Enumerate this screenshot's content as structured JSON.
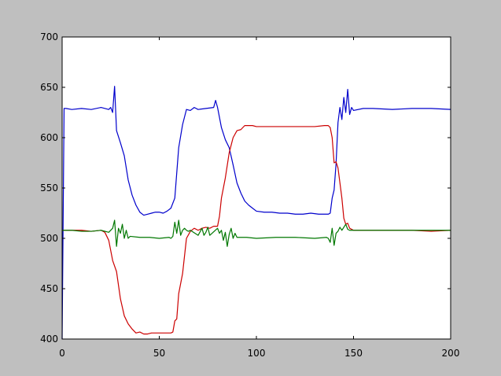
{
  "chart_data": {
    "type": "line",
    "title": "",
    "xlabel": "",
    "ylabel": "",
    "xlim": [
      0,
      200
    ],
    "ylim": [
      400,
      700
    ],
    "xticks": [
      0,
      50,
      100,
      150,
      200
    ],
    "yticks": [
      400,
      450,
      500,
      550,
      600,
      650,
      700
    ],
    "xtick_labels": [
      "0",
      "50",
      "100",
      "150",
      "200"
    ],
    "ytick_labels": [
      "400",
      "450",
      "500",
      "550",
      "600",
      "650",
      "700"
    ],
    "grid": false,
    "legend": "none",
    "colors": {
      "figure_background": "#bfbfbf",
      "axes_background": "#ffffff"
    },
    "series": [
      {
        "color": "#0000cc",
        "x": [
          0,
          1,
          2,
          5,
          10,
          15,
          20,
          24,
          25,
          26,
          27,
          28,
          30,
          32,
          34,
          36,
          38,
          40,
          42,
          44,
          46,
          48,
          50,
          52,
          54,
          56,
          58,
          59,
          60,
          62,
          64,
          66,
          68,
          70,
          74,
          78,
          79,
          80,
          81,
          82,
          84,
          86,
          88,
          90,
          92,
          94,
          96,
          98,
          100,
          104,
          108,
          112,
          116,
          120,
          124,
          128,
          132,
          136,
          137,
          138,
          139,
          140,
          141,
          142,
          143,
          144,
          145,
          146,
          147,
          148,
          149,
          150,
          155,
          160,
          170,
          180,
          190,
          200
        ],
        "y": [
          400,
          629,
          629,
          628,
          629,
          628,
          630,
          628,
          630,
          625,
          651,
          607,
          595,
          582,
          558,
          543,
          533,
          526,
          523,
          524,
          525,
          526,
          526,
          525,
          527,
          530,
          540,
          565,
          590,
          613,
          628,
          627,
          630,
          628,
          629,
          630,
          637,
          630,
          620,
          610,
          598,
          590,
          573,
          555,
          545,
          537,
          533,
          530,
          527,
          526,
          526,
          525,
          525,
          524,
          524,
          525,
          524,
          524,
          524,
          525,
          540,
          548,
          574,
          615,
          630,
          618,
          640,
          625,
          648,
          623,
          630,
          627,
          629,
          629,
          628,
          629,
          629,
          628
        ]
      },
      {
        "color": "#cc0000",
        "x": [
          0,
          5,
          10,
          15,
          20,
          22,
          24,
          26,
          28,
          30,
          32,
          34,
          36,
          38,
          40,
          42,
          44,
          46,
          48,
          50,
          52,
          54,
          56,
          57,
          58,
          59,
          60,
          62,
          64,
          66,
          68,
          70,
          72,
          74,
          76,
          78,
          80,
          81,
          82,
          84,
          86,
          88,
          90,
          92,
          94,
          96,
          98,
          100,
          110,
          120,
          130,
          135,
          136,
          137,
          138,
          139,
          140,
          141,
          142,
          143,
          144,
          145,
          146,
          147,
          148,
          150,
          155,
          160,
          170,
          180,
          190,
          200
        ],
        "y": [
          508,
          508,
          508,
          507,
          508,
          506,
          498,
          478,
          467,
          440,
          423,
          415,
          410,
          406,
          407,
          405,
          405,
          406,
          406,
          406,
          406,
          406,
          406,
          407,
          418,
          420,
          445,
          465,
          500,
          507,
          510,
          508,
          510,
          511,
          510,
          512,
          512,
          522,
          540,
          560,
          585,
          600,
          607,
          608,
          612,
          612,
          612,
          611,
          611,
          611,
          611,
          612,
          612,
          612,
          610,
          600,
          575,
          576,
          570,
          555,
          540,
          520,
          514,
          515,
          510,
          508,
          508,
          508,
          508,
          508,
          507,
          508
        ]
      },
      {
        "color": "#007700",
        "x": [
          0,
          5,
          10,
          15,
          20,
          24,
          26,
          27,
          28,
          29,
          30,
          31,
          32,
          33,
          34,
          35,
          40,
          45,
          50,
          55,
          56,
          57,
          58,
          59,
          60,
          61,
          62,
          63,
          64,
          65,
          66,
          70,
          72,
          73,
          74,
          75,
          76,
          80,
          81,
          82,
          83,
          84,
          85,
          86,
          87,
          88,
          89,
          90,
          95,
          100,
          110,
          120,
          130,
          136,
          137,
          138,
          139,
          140,
          141,
          142,
          143,
          144,
          145,
          146,
          147,
          148,
          150,
          160,
          170,
          180,
          190,
          200
        ],
        "y": [
          508,
          508,
          507,
          507,
          508,
          506,
          510,
          518,
          492,
          510,
          505,
          514,
          500,
          508,
          500,
          502,
          501,
          501,
          500,
          501,
          500,
          502,
          516,
          505,
          518,
          503,
          508,
          510,
          508,
          507,
          508,
          503,
          510,
          503,
          506,
          511,
          503,
          510,
          505,
          508,
          498,
          506,
          492,
          504,
          510,
          500,
          505,
          501,
          501,
          500,
          501,
          501,
          500,
          501,
          500,
          496,
          510,
          493,
          505,
          507,
          511,
          508,
          511,
          514,
          509,
          508,
          508,
          508,
          508,
          508,
          508,
          508
        ]
      }
    ]
  }
}
